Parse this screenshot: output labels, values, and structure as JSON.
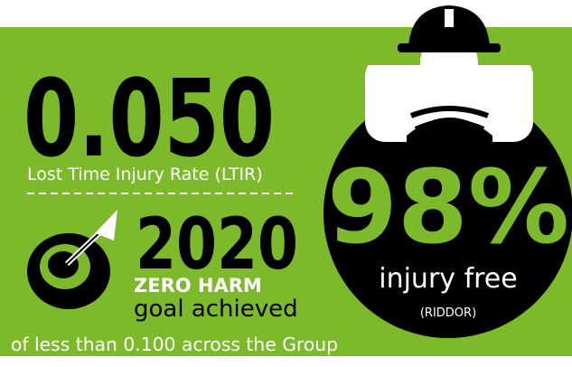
{
  "ltir": {
    "value": "0.050",
    "label": "Lost Time Injury Rate (LTIR)"
  },
  "goal": {
    "year": "2020",
    "title": "ZERO HARM",
    "subtitle": "goal achieved",
    "note": "of less than 0.100 across the Group"
  },
  "injury_free": {
    "value": "98%",
    "label": "injury free",
    "note": "(RIDDOR)"
  }
}
